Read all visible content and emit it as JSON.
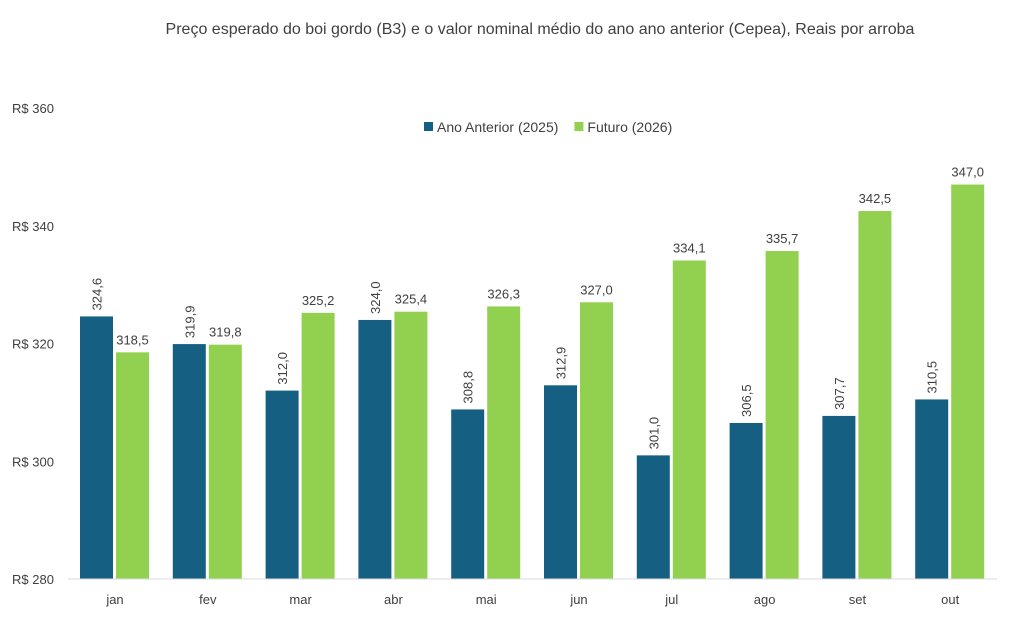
{
  "chart_data": {
    "type": "bar",
    "title": "Preço esperado do boi gordo (B3) e o valor nominal médio do ano ano anterior (Cepea), Reais por arroba",
    "categories": [
      "jan",
      "fev",
      "mar",
      "abr",
      "mai",
      "jun",
      "jul",
      "ago",
      "set",
      "out"
    ],
    "series": [
      {
        "name": "Ano Anterior (2025)",
        "color": "#155f82",
        "values": [
          324.6,
          319.9,
          312.0,
          324.0,
          308.8,
          312.9,
          301.0,
          306.5,
          307.7,
          310.5
        ]
      },
      {
        "name": "Futuro (2026)",
        "color": "#92d050",
        "values": [
          318.5,
          319.8,
          325.2,
          325.4,
          326.3,
          327.0,
          334.1,
          335.7,
          342.5,
          347.0
        ]
      }
    ],
    "ylim": [
      280,
      360
    ],
    "yticks": [
      280,
      300,
      320,
      340,
      360
    ],
    "ytick_prefix": "R$ ",
    "decimal_separator": ",",
    "legend_position": "top",
    "grid": false,
    "xlabel": "",
    "ylabel": ""
  }
}
